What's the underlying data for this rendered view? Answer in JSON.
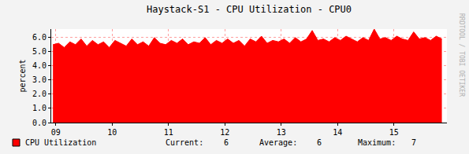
{
  "chart_data": {
    "type": "area",
    "title": "Haystack-S1 - CPU Utilization - CPU0",
    "y_label": "percent",
    "annotations": [
      "RRDTOOL / TOBI OETIKER"
    ],
    "x": [
      8.95,
      9.05,
      9.15,
      9.25,
      9.35,
      9.45,
      9.55,
      9.65,
      9.75,
      9.85,
      9.95,
      10.05,
      10.15,
      10.25,
      10.35,
      10.45,
      10.55,
      10.65,
      10.75,
      10.85,
      10.95,
      11.05,
      11.15,
      11.25,
      11.35,
      11.45,
      11.55,
      11.65,
      11.75,
      11.85,
      11.95,
      12.05,
      12.15,
      12.25,
      12.35,
      12.45,
      12.55,
      12.65,
      12.75,
      12.85,
      12.95,
      13.05,
      13.15,
      13.25,
      13.35,
      13.45,
      13.55,
      13.65,
      13.75,
      13.85,
      13.95,
      14.05,
      14.15,
      14.25,
      14.35,
      14.45,
      14.55,
      14.65,
      14.75,
      14.85,
      14.95,
      15.05,
      15.15,
      15.25,
      15.35,
      15.45,
      15.55,
      15.65,
      15.75,
      15.85
    ],
    "series": [
      {
        "name": "CPU Utilization",
        "color": "#ff0000",
        "values": [
          5.5,
          5.6,
          5.3,
          5.7,
          5.5,
          5.9,
          5.4,
          5.8,
          5.5,
          5.7,
          5.3,
          5.8,
          5.6,
          5.4,
          5.9,
          5.5,
          5.7,
          5.4,
          6.0,
          5.6,
          5.5,
          5.8,
          5.6,
          5.9,
          5.5,
          5.7,
          5.6,
          6.0,
          5.5,
          5.8,
          5.6,
          5.9,
          5.6,
          5.8,
          5.4,
          5.9,
          5.7,
          6.1,
          5.6,
          5.8,
          5.7,
          5.9,
          5.6,
          6.0,
          5.7,
          5.9,
          6.5,
          5.8,
          5.9,
          5.7,
          6.0,
          5.8,
          6.1,
          5.9,
          5.7,
          6.0,
          5.8,
          6.6,
          5.9,
          6.0,
          5.8,
          6.1,
          5.9,
          5.8,
          6.4,
          5.9,
          6.0,
          5.8,
          6.1,
          5.9
        ],
        "stats": [
          {
            "label": "Current:",
            "value": 6
          },
          {
            "label": "Average:",
            "value": 6
          },
          {
            "label": "Maximum:",
            "value": 7
          }
        ]
      }
    ],
    "xlim": [
      8.92,
      15.94
    ],
    "xticks": [
      {
        "value": 9,
        "label": "09"
      },
      10,
      11,
      12,
      13,
      14,
      15
    ],
    "ylim": [
      0,
      6.6
    ],
    "yticks": [
      {
        "value": 0,
        "label": "0.0"
      },
      {
        "value": 1,
        "label": "1.0"
      },
      {
        "value": 2,
        "label": "2.0"
      },
      {
        "value": 3,
        "label": "3.0"
      },
      {
        "value": 4,
        "label": "4.0"
      },
      {
        "value": 5,
        "label": "5.0"
      },
      {
        "value": 6,
        "label": "6.0"
      }
    ],
    "grid": true
  }
}
